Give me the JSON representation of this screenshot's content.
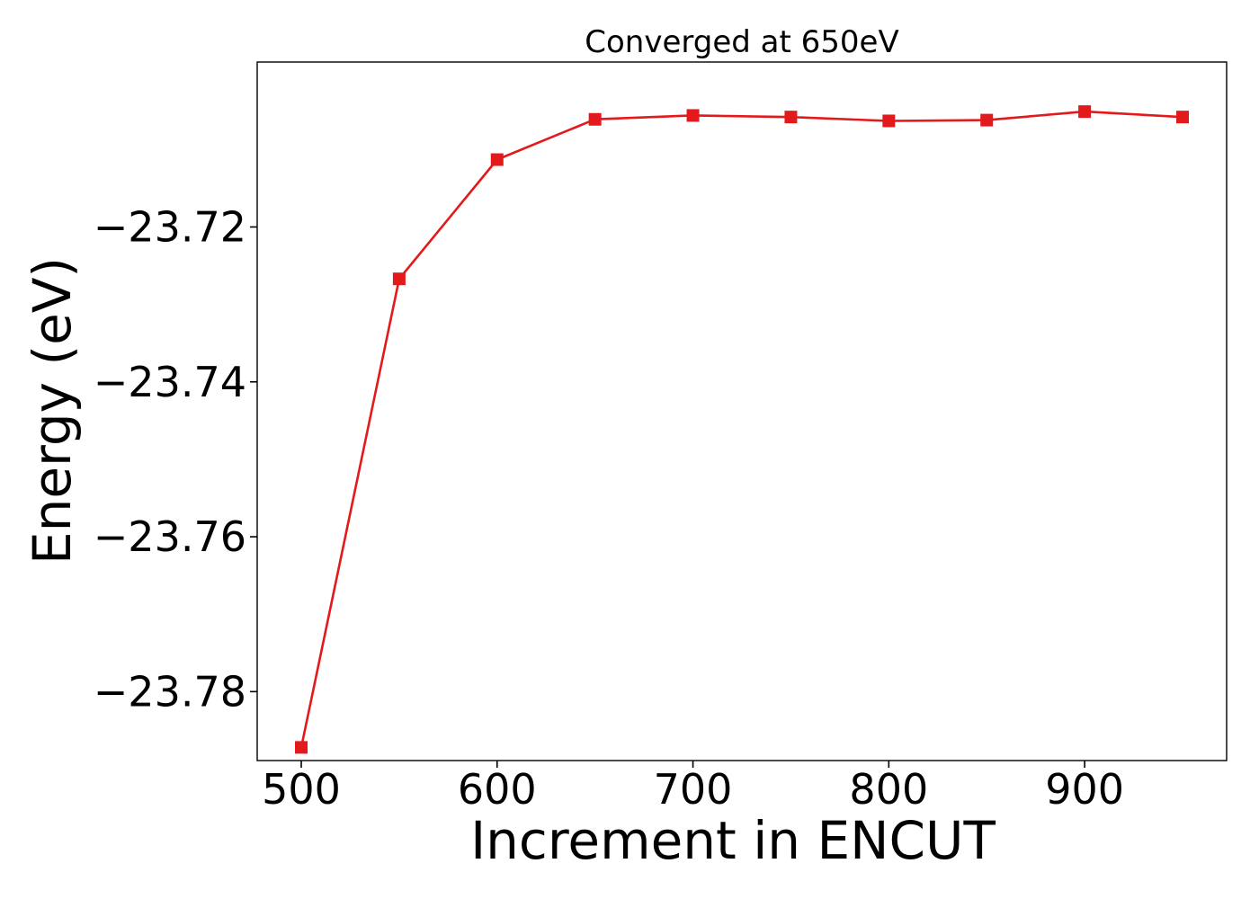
{
  "chart_data": {
    "type": "line",
    "title": "Converged at 650eV",
    "xlabel": "Increment in ENCUT",
    "ylabel": "Energy (eV)",
    "xlim": [
      477.5,
      972.5
    ],
    "ylim": [
      -23.7889,
      -23.6987
    ],
    "xticks": [
      500,
      600,
      700,
      800,
      900
    ],
    "xtick_labels": [
      "500",
      "600",
      "700",
      "800",
      "900"
    ],
    "yticks": [
      -23.72,
      -23.74,
      -23.76,
      -23.78
    ],
    "ytick_labels": [
      "−23.72",
      "−23.74",
      "−23.76",
      "−23.78"
    ],
    "grid": false,
    "legend": "none",
    "series": [
      {
        "color": "#e31a1c",
        "marker": "square",
        "x": [
          500,
          550,
          600,
          650,
          700,
          750,
          800,
          850,
          900,
          950
        ],
        "y": [
          -23.7872,
          -23.7267,
          -23.7113,
          -23.7061,
          -23.7056,
          -23.7058,
          -23.7063,
          -23.7062,
          -23.7051,
          -23.7058
        ]
      }
    ]
  }
}
